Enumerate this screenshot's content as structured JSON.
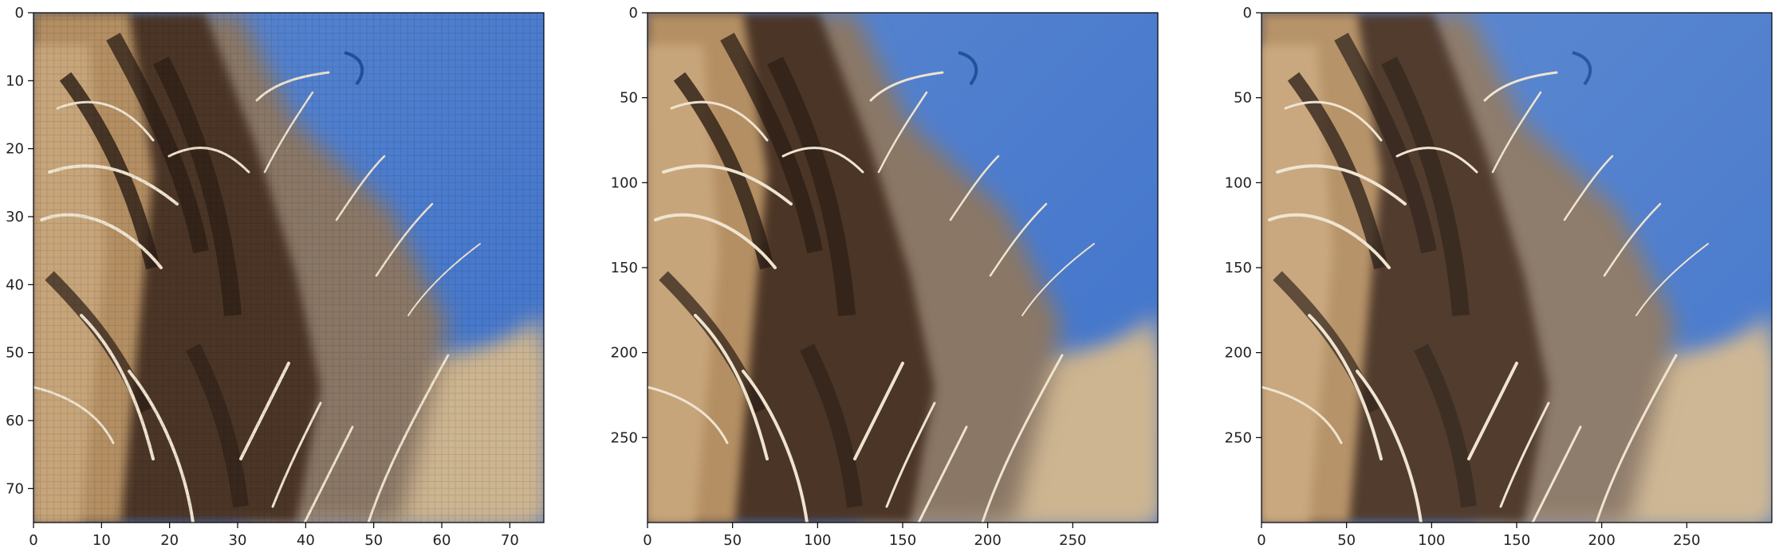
{
  "figure": {
    "panels": [
      {
        "id": "low-res",
        "image_semantic": "low-resolution pixelated close-up of tan and dark brown fur against a blue sky",
        "x_ticks": [
          "0",
          "10",
          "20",
          "30",
          "40",
          "50",
          "60",
          "70"
        ],
        "y_ticks": [
          "0",
          "10",
          "20",
          "30",
          "40",
          "50",
          "60",
          "70"
        ],
        "xlim": [
          0,
          75
        ],
        "ylim": [
          75,
          0
        ]
      },
      {
        "id": "high-res",
        "image_semantic": "high-resolution close-up of tan and dark brown fur with white hairs against a blue sky",
        "x_ticks": [
          "0",
          "50",
          "100",
          "150",
          "200",
          "250"
        ],
        "y_ticks": [
          "0",
          "50",
          "100",
          "150",
          "200",
          "250"
        ],
        "xlim": [
          0,
          300
        ],
        "ylim": [
          300,
          0
        ]
      },
      {
        "id": "super-res",
        "image_semantic": "upscaled smooth close-up of tan and dark brown fur with white hairs against a blue sky",
        "x_ticks": [
          "0",
          "50",
          "100",
          "150",
          "200",
          "250"
        ],
        "y_ticks": [
          "0",
          "50",
          "100",
          "150",
          "200",
          "250"
        ],
        "xlim": [
          0,
          300
        ],
        "ylim": [
          300,
          0
        ]
      }
    ],
    "colors": {
      "sky": "#4f7fd0",
      "fur_tan": "#b9946a",
      "fur_dark": "#3a2a20",
      "hair_light": "#efe4d0"
    }
  }
}
